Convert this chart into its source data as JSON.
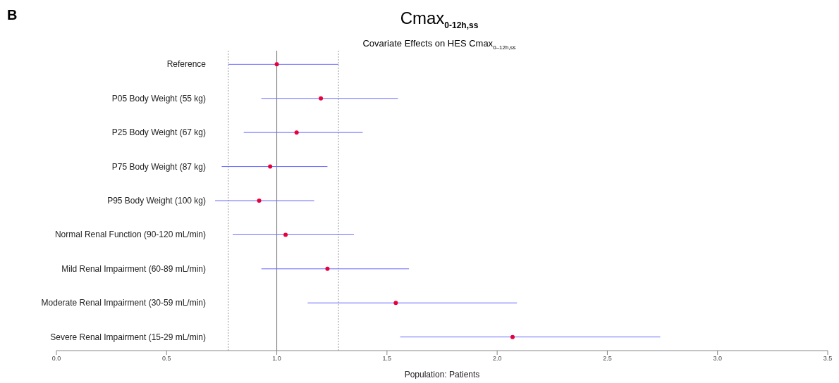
{
  "chart_data": {
    "type": "scatter",
    "orientation": "horizontal",
    "title": "Cmax$_{0-12h,ss}$",
    "subtitle": "Covariate Effects on HES Cmax$_{0–12h,ss}$",
    "xlabel": "Population: Patients",
    "annotations": [
      "B"
    ],
    "categories": [
      "Reference",
      "P05 Body Weight (55 kg)",
      "P25 Body Weight (67 kg)",
      "P75 Body Weight (87 kg)",
      "P95 Body Weight (100 kg)",
      "Normal Renal Function (90-120 mL/min)",
      "Mild Renal Impairment (60-89 mL/min)",
      "Moderate Renal Impairment (30-59 mL/min)",
      "Severe Renal Impairment (15-29 mL/min)"
    ],
    "series": [
      {
        "color": "#6a6aff",
        "colors": [
          "#e8003c",
          "#e8003c",
          "#e8003c",
          "#e8003c",
          "#e8003c",
          "#e8003c",
          "#e8003c",
          "#e8003c",
          "#e8003c"
        ],
        "values": [
          1.0,
          1.2,
          1.09,
          0.97,
          0.92,
          1.04,
          1.23,
          1.54,
          2.07
        ],
        "errors": [
          [
            0.78,
            1.28
          ],
          [
            0.93,
            1.55
          ],
          [
            0.85,
            1.39
          ],
          [
            0.75,
            1.23
          ],
          [
            0.72,
            1.17
          ],
          [
            0.8,
            1.35
          ],
          [
            0.93,
            1.6
          ],
          [
            1.14,
            2.09
          ],
          [
            1.56,
            2.74
          ]
        ]
      }
    ],
    "xlim": [
      0,
      3.5
    ],
    "xticks": [
      {
        "value": 0,
        "label": "0.0"
      },
      {
        "value": 0.5,
        "label": "0.5"
      },
      {
        "value": 1,
        "label": "1.0"
      },
      {
        "value": 1.5,
        "label": "1.5"
      },
      {
        "value": 2,
        "label": "2.0"
      },
      {
        "value": 2.5,
        "label": "2.5"
      },
      {
        "value": 3,
        "label": "3.0"
      },
      {
        "value": 3.5,
        "label": "3.5"
      }
    ],
    "ref_lines": [
      {
        "axis": "x",
        "value": 0.78,
        "color": "#999999",
        "line_style": "dotted"
      },
      {
        "axis": "x",
        "value": 1.0,
        "color": "#777777",
        "line_style": "solid"
      },
      {
        "axis": "x",
        "value": 1.28,
        "color": "#999999",
        "line_style": "dotted"
      }
    ],
    "grid": false,
    "legend": false,
    "marker": "circle"
  }
}
